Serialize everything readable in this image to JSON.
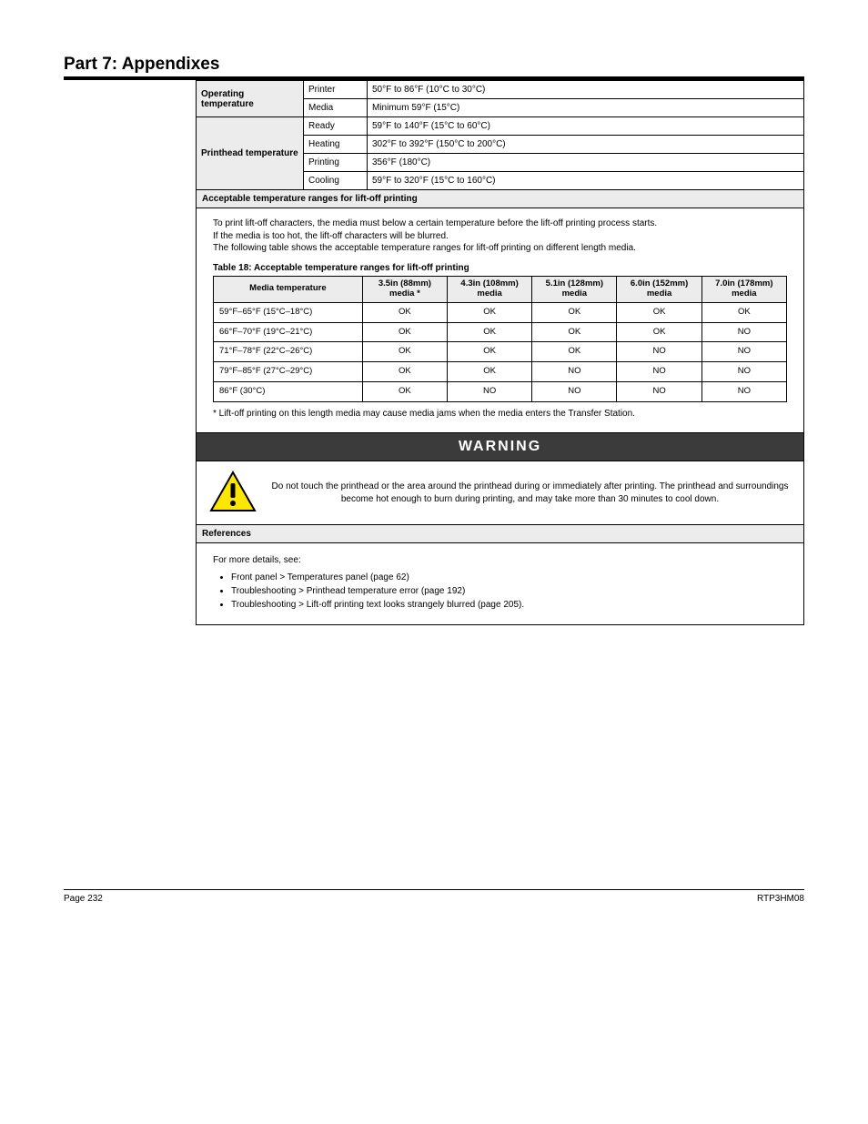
{
  "header": {
    "title": "Part 7: Appendixes"
  },
  "spec_table": {
    "groups": [
      {
        "category": "Operating temperature",
        "rows": [
          {
            "label": "Printer",
            "value": "50°F to 86°F (10°C to 30°C)"
          },
          {
            "label": "Media",
            "value": "Minimum 59°F (15°C)"
          }
        ]
      },
      {
        "category": "Printhead temperature",
        "rows": [
          {
            "label": "Ready",
            "value": "59°F to 140°F (15°C to 60°C)"
          },
          {
            "label": "Heating",
            "value": "302°F to 392°F (150°C to 200°C)"
          },
          {
            "label": "Printing",
            "value": "356°F (180°C)"
          },
          {
            "label": "Cooling",
            "value": "59°F to 320°F (15°C to 160°C)"
          }
        ]
      }
    ]
  },
  "temp_section": {
    "header": "Acceptable temperature ranges for lift-off printing",
    "intro_lines": [
      "To print lift-off characters, the media must below a certain temperature before the lift-off printing process starts.",
      "If the media is too hot, the lift-off characters will be blurred.",
      "The following table shows the acceptable temperature ranges for lift-off printing on different length media."
    ],
    "table_caption": "Table 18: Acceptable temperature ranges for lift-off printing",
    "columns": [
      "Media temperature",
      "3.5in (88mm) media *",
      "4.3in (108mm) media",
      "5.1in (128mm) media",
      "6.0in (152mm) media",
      "7.0in (178mm) media"
    ],
    "rows": [
      {
        "label": "59°F–65°F (15°C–18°C)",
        "vals": [
          "OK",
          "OK",
          "OK",
          "OK",
          "OK"
        ]
      },
      {
        "label": "66°F–70°F (19°C–21°C)",
        "vals": [
          "OK",
          "OK",
          "OK",
          "OK",
          "NO"
        ]
      },
      {
        "label": "71°F–78°F (22°C–26°C)",
        "vals": [
          "OK",
          "OK",
          "OK",
          "NO",
          "NO"
        ]
      },
      {
        "label": "79°F–85°F (27°C–29°C)",
        "vals": [
          "OK",
          "OK",
          "NO",
          "NO",
          "NO"
        ]
      },
      {
        "label": "86°F (30°C)",
        "vals": [
          "OK",
          "NO",
          "NO",
          "NO",
          "NO"
        ]
      }
    ],
    "footnote": "* Lift-off printing on this length media may cause media jams when the media enters the Transfer Station."
  },
  "warning": {
    "title": "WARNING",
    "text": "Do not touch the printhead or the area around the printhead during or immediately after printing. The printhead and surroundings become hot enough to burn during printing, and may take more than 30 minutes to cool down."
  },
  "references": {
    "header": "References",
    "lead": "For more details, see:",
    "items": [
      "Front panel > Temperatures panel (page 62)",
      "Troubleshooting > Printhead temperature error (page 192)",
      "Troubleshooting > Lift-off printing text looks strangely blurred (page 205)."
    ]
  },
  "footer": {
    "left": "Page 232",
    "right": "RTP3HM08"
  }
}
